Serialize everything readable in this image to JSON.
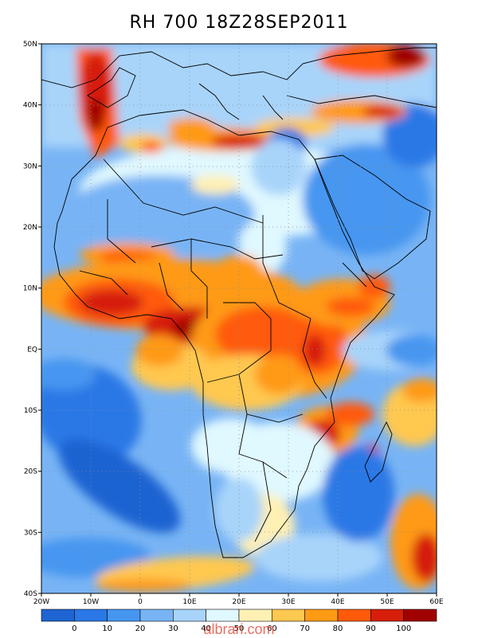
{
  "title": "RH 700 18Z28SEP2011",
  "map": {
    "region": "Africa",
    "variable": "Relative humidity at 700 hPa",
    "lat_labels": [
      "50N",
      "40N",
      "30N",
      "20N",
      "10N",
      "EQ",
      "10S",
      "20S",
      "30S",
      "40S"
    ],
    "lon_labels": [
      "20W",
      "10W",
      "0",
      "10E",
      "20E",
      "30E",
      "40E",
      "50E",
      "60E"
    ],
    "lat_range": [
      -40,
      50
    ],
    "lon_range": [
      -20,
      60
    ]
  },
  "colorbar": {
    "labels": [
      "0",
      "10",
      "20",
      "30",
      "40",
      "50",
      "60",
      "70",
      "80",
      "90",
      "100"
    ],
    "colors": [
      "#1e64d2",
      "#2a78e6",
      "#4696f0",
      "#78b4f5",
      "#a8d4fa",
      "#e0f8ff",
      "#fff0b4",
      "#ffc850",
      "#ff9a14",
      "#ff5a0a",
      "#d61e0a",
      "#a00000"
    ]
  },
  "watermark": "albrari.com"
}
